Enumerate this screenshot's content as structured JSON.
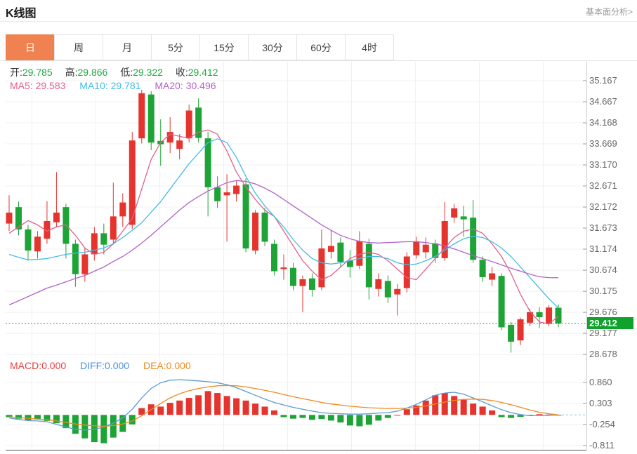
{
  "header": {
    "title": "K线图",
    "link": "基本面分析>"
  },
  "tabs": {
    "items": [
      {
        "label": "日",
        "active": true
      },
      {
        "label": "周",
        "active": false
      },
      {
        "label": "月",
        "active": false
      },
      {
        "label": "5分",
        "active": false
      },
      {
        "label": "15分",
        "active": false
      },
      {
        "label": "30分",
        "active": false
      },
      {
        "label": "60分",
        "active": false
      },
      {
        "label": "4时",
        "active": false
      }
    ]
  },
  "ohlc": {
    "open_label": "开:",
    "open": "29.785",
    "high_label": "高:",
    "high": "29.866",
    "low_label": "低:",
    "low": "29.322",
    "close_label": "收:",
    "close": "29.412"
  },
  "ma_legend": {
    "ma5": "MA5: 29.583",
    "ma10": "MA10: 29.781",
    "ma20": "MA20: 30.496"
  },
  "macd_legend": {
    "macd": "MACD:0.000",
    "diff": "DIFF:0.000",
    "dea": "DEA:0.000"
  },
  "price_axis": {
    "labels": [
      "35.167",
      "34.667",
      "34.168",
      "33.669",
      "33.170",
      "32.671",
      "32.172",
      "31.673",
      "31.174",
      "30.674",
      "30.175",
      "29.676",
      "29.177",
      "28.678"
    ],
    "last_price": "29.412"
  },
  "macd_axis": {
    "labels": [
      "0.860",
      "0.303",
      "-0.254",
      "-0.811"
    ]
  },
  "chart_data": {
    "type": "candlestick+macd",
    "main": {
      "title": "K线图 日K",
      "y_ticks": [
        35.167,
        34.667,
        34.168,
        33.669,
        33.17,
        32.671,
        32.172,
        31.673,
        31.174,
        30.674,
        30.175,
        29.676,
        29.177,
        28.678
      ],
      "last_price": 29.412,
      "candles": [
        [
          31.78,
          32.45,
          31.6,
          32.04
        ],
        [
          32.17,
          32.3,
          31.5,
          31.64
        ],
        [
          31.64,
          31.75,
          30.9,
          31.14
        ],
        [
          31.12,
          31.6,
          30.95,
          31.47
        ],
        [
          31.42,
          32.31,
          31.3,
          31.84
        ],
        [
          31.81,
          33.0,
          31.7,
          32.04
        ],
        [
          32.17,
          32.25,
          30.95,
          31.3
        ],
        [
          31.3,
          31.4,
          30.28,
          30.58
        ],
        [
          30.58,
          31.2,
          30.4,
          31.05
        ],
        [
          31.05,
          31.7,
          30.9,
          31.55
        ],
        [
          31.55,
          31.78,
          31.05,
          31.28
        ],
        [
          31.4,
          32.75,
          31.28,
          31.95
        ],
        [
          31.95,
          32.5,
          31.7,
          32.28
        ],
        [
          31.75,
          33.95,
          31.65,
          33.75
        ],
        [
          33.8,
          34.95,
          33.68,
          34.87
        ],
        [
          34.84,
          34.92,
          33.52,
          33.7
        ],
        [
          33.74,
          34.25,
          33.15,
          33.66
        ],
        [
          33.7,
          34.3,
          33.45,
          33.95
        ],
        [
          33.55,
          33.9,
          33.3,
          33.75
        ],
        [
          33.8,
          34.6,
          33.7,
          34.46
        ],
        [
          34.53,
          34.75,
          33.7,
          33.81
        ],
        [
          33.8,
          33.95,
          31.95,
          32.64
        ],
        [
          32.64,
          32.9,
          32.15,
          32.31
        ],
        [
          32.45,
          32.95,
          31.35,
          32.52
        ],
        [
          32.48,
          32.8,
          32.3,
          32.68
        ],
        [
          32.71,
          32.85,
          31.1,
          31.19
        ],
        [
          31.14,
          32.1,
          31.05,
          32.04
        ],
        [
          32.04,
          32.15,
          31.25,
          31.35
        ],
        [
          31.3,
          31.4,
          30.55,
          30.65
        ],
        [
          30.7,
          31.05,
          30.45,
          30.74
        ],
        [
          30.73,
          30.85,
          30.2,
          30.3
        ],
        [
          30.3,
          30.55,
          29.68,
          30.46
        ],
        [
          30.48,
          30.6,
          30.05,
          30.21
        ],
        [
          30.27,
          31.64,
          30.2,
          31.19
        ],
        [
          31.11,
          31.62,
          30.95,
          31.25
        ],
        [
          31.33,
          31.45,
          30.75,
          30.87
        ],
        [
          30.9,
          31.15,
          30.5,
          30.75
        ],
        [
          30.78,
          31.6,
          30.7,
          31.36
        ],
        [
          31.3,
          31.42,
          29.98,
          30.27
        ],
        [
          30.23,
          30.6,
          30.05,
          30.46
        ],
        [
          30.42,
          30.55,
          29.9,
          30.03
        ],
        [
          30.1,
          30.35,
          29.6,
          30.23
        ],
        [
          30.25,
          31.1,
          30.15,
          31.0
        ],
        [
          31.03,
          31.47,
          30.95,
          31.36
        ],
        [
          31.1,
          31.45,
          30.95,
          31.28
        ],
        [
          31.31,
          31.4,
          30.85,
          30.96
        ],
        [
          30.96,
          32.29,
          30.9,
          31.84
        ],
        [
          31.92,
          32.25,
          31.8,
          32.14
        ],
        [
          31.95,
          32.2,
          31.47,
          31.88
        ],
        [
          31.92,
          32.34,
          30.85,
          30.92
        ],
        [
          30.92,
          31.0,
          30.4,
          30.51
        ],
        [
          30.45,
          30.75,
          30.3,
          30.6
        ],
        [
          30.54,
          30.6,
          29.25,
          29.32
        ],
        [
          29.38,
          29.45,
          28.72,
          28.98
        ],
        [
          29.01,
          29.55,
          28.9,
          29.51
        ],
        [
          29.43,
          29.75,
          29.35,
          29.68
        ],
        [
          29.68,
          29.8,
          29.3,
          29.56
        ],
        [
          29.4,
          29.85,
          29.35,
          29.79
        ],
        [
          29.785,
          29.866,
          29.322,
          29.412
        ]
      ],
      "ma5": [
        31.55,
        31.7,
        31.85,
        31.75,
        31.6,
        31.7,
        31.75,
        31.5,
        31.2,
        31.05,
        31.1,
        31.3,
        31.6,
        31.9,
        32.6,
        33.3,
        33.7,
        33.9,
        33.85,
        33.8,
        33.95,
        34.0,
        33.9,
        33.5,
        33.0,
        32.65,
        32.35,
        32.1,
        31.95,
        31.6,
        31.25,
        30.9,
        30.65,
        30.45,
        30.55,
        30.75,
        30.95,
        31.05,
        31.1,
        31.05,
        30.9,
        30.7,
        30.5,
        30.45,
        30.7,
        30.95,
        31.2,
        31.45,
        31.6,
        31.65,
        31.55,
        31.3,
        31.0,
        30.6,
        30.1,
        29.7,
        29.45,
        29.4,
        29.583
      ],
      "ma10": [
        31.05,
        30.98,
        30.92,
        30.93,
        30.95,
        31.0,
        31.05,
        31.08,
        31.1,
        31.15,
        31.2,
        31.3,
        31.45,
        31.62,
        31.8,
        32.05,
        32.3,
        32.6,
        32.9,
        33.2,
        33.45,
        33.7,
        33.79,
        33.7,
        33.35,
        32.9,
        32.5,
        32.2,
        31.95,
        31.7,
        31.4,
        31.15,
        30.95,
        30.85,
        30.82,
        30.85,
        30.9,
        30.95,
        31.0,
        31.0,
        30.95,
        30.85,
        30.8,
        30.82,
        30.9,
        31.0,
        31.15,
        31.3,
        31.42,
        31.48,
        31.45,
        31.35,
        31.2,
        31.0,
        30.75,
        30.5,
        30.25,
        30.0,
        29.781
      ],
      "ma20": [
        29.85,
        29.95,
        30.05,
        30.15,
        30.25,
        30.32,
        30.4,
        30.48,
        30.55,
        30.65,
        30.75,
        30.88,
        31.0,
        31.15,
        31.32,
        31.5,
        31.7,
        31.9,
        32.1,
        32.28,
        32.42,
        32.55,
        32.65,
        32.75,
        32.8,
        32.78,
        32.72,
        32.62,
        32.5,
        32.35,
        32.2,
        32.05,
        31.9,
        31.75,
        31.62,
        31.5,
        31.42,
        31.36,
        31.33,
        31.32,
        31.33,
        31.34,
        31.35,
        31.35,
        31.33,
        31.3,
        31.25,
        31.18,
        31.1,
        31.02,
        30.95,
        30.88,
        30.8,
        30.72,
        30.65,
        30.58,
        30.52,
        30.5,
        30.496
      ]
    },
    "macd": {
      "y_ticks": [
        0.86,
        0.303,
        -0.254,
        -0.811
      ],
      "hist": [
        -0.06,
        -0.1,
        -0.14,
        -0.12,
        -0.16,
        -0.22,
        -0.35,
        -0.5,
        -0.62,
        -0.72,
        -0.75,
        -0.6,
        -0.45,
        -0.25,
        0.18,
        0.28,
        0.22,
        0.32,
        0.38,
        0.45,
        0.52,
        0.63,
        0.58,
        0.5,
        0.44,
        0.38,
        0.3,
        0.22,
        0.12,
        -0.06,
        -0.1,
        -0.08,
        -0.13,
        -0.11,
        -0.15,
        -0.2,
        -0.28,
        -0.3,
        -0.26,
        -0.15,
        -0.08,
        0.0,
        0.15,
        0.25,
        0.38,
        0.52,
        0.58,
        0.5,
        0.4,
        0.3,
        0.22,
        0.12,
        -0.06,
        -0.08,
        -0.05,
        -0.02,
        0.02,
        0.01,
        0.0
      ],
      "diff": [
        -0.08,
        -0.12,
        -0.15,
        -0.16,
        -0.18,
        -0.25,
        -0.32,
        -0.38,
        -0.4,
        -0.38,
        -0.32,
        -0.22,
        -0.08,
        0.15,
        0.45,
        0.7,
        0.85,
        0.92,
        0.93,
        0.92,
        0.9,
        0.88,
        0.85,
        0.8,
        0.72,
        0.62,
        0.52,
        0.42,
        0.33,
        0.26,
        0.2,
        0.15,
        0.1,
        0.06,
        0.04,
        0.03,
        0.02,
        0.02,
        0.03,
        0.05,
        0.06,
        0.1,
        0.18,
        0.28,
        0.4,
        0.52,
        0.58,
        0.6,
        0.55,
        0.45,
        0.35,
        0.24,
        0.14,
        0.06,
        0.01,
        -0.02,
        -0.02,
        -0.01,
        0.0
      ],
      "dea": [
        -0.05,
        -0.07,
        -0.09,
        -0.11,
        -0.13,
        -0.16,
        -0.2,
        -0.24,
        -0.27,
        -0.29,
        -0.3,
        -0.28,
        -0.24,
        -0.16,
        -0.02,
        0.14,
        0.3,
        0.45,
        0.56,
        0.64,
        0.7,
        0.74,
        0.77,
        0.78,
        0.77,
        0.74,
        0.7,
        0.65,
        0.6,
        0.54,
        0.48,
        0.43,
        0.38,
        0.33,
        0.29,
        0.26,
        0.23,
        0.21,
        0.19,
        0.18,
        0.17,
        0.17,
        0.18,
        0.2,
        0.24,
        0.29,
        0.34,
        0.38,
        0.41,
        0.42,
        0.41,
        0.38,
        0.33,
        0.27,
        0.2,
        0.13,
        0.07,
        0.03,
        0.0
      ]
    },
    "colors": {
      "up": "#e5342e",
      "down": "#1ea436",
      "badge": "#0fa32b",
      "ma5": "#e2608c",
      "ma10": "#43bce8",
      "ma20": "#b163c8",
      "diff": "#5b9bd5",
      "dea": "#f0891e",
      "grid": "#f0f0f0",
      "axis": "#cccccc",
      "tab_active": "#ef8250"
    }
  }
}
